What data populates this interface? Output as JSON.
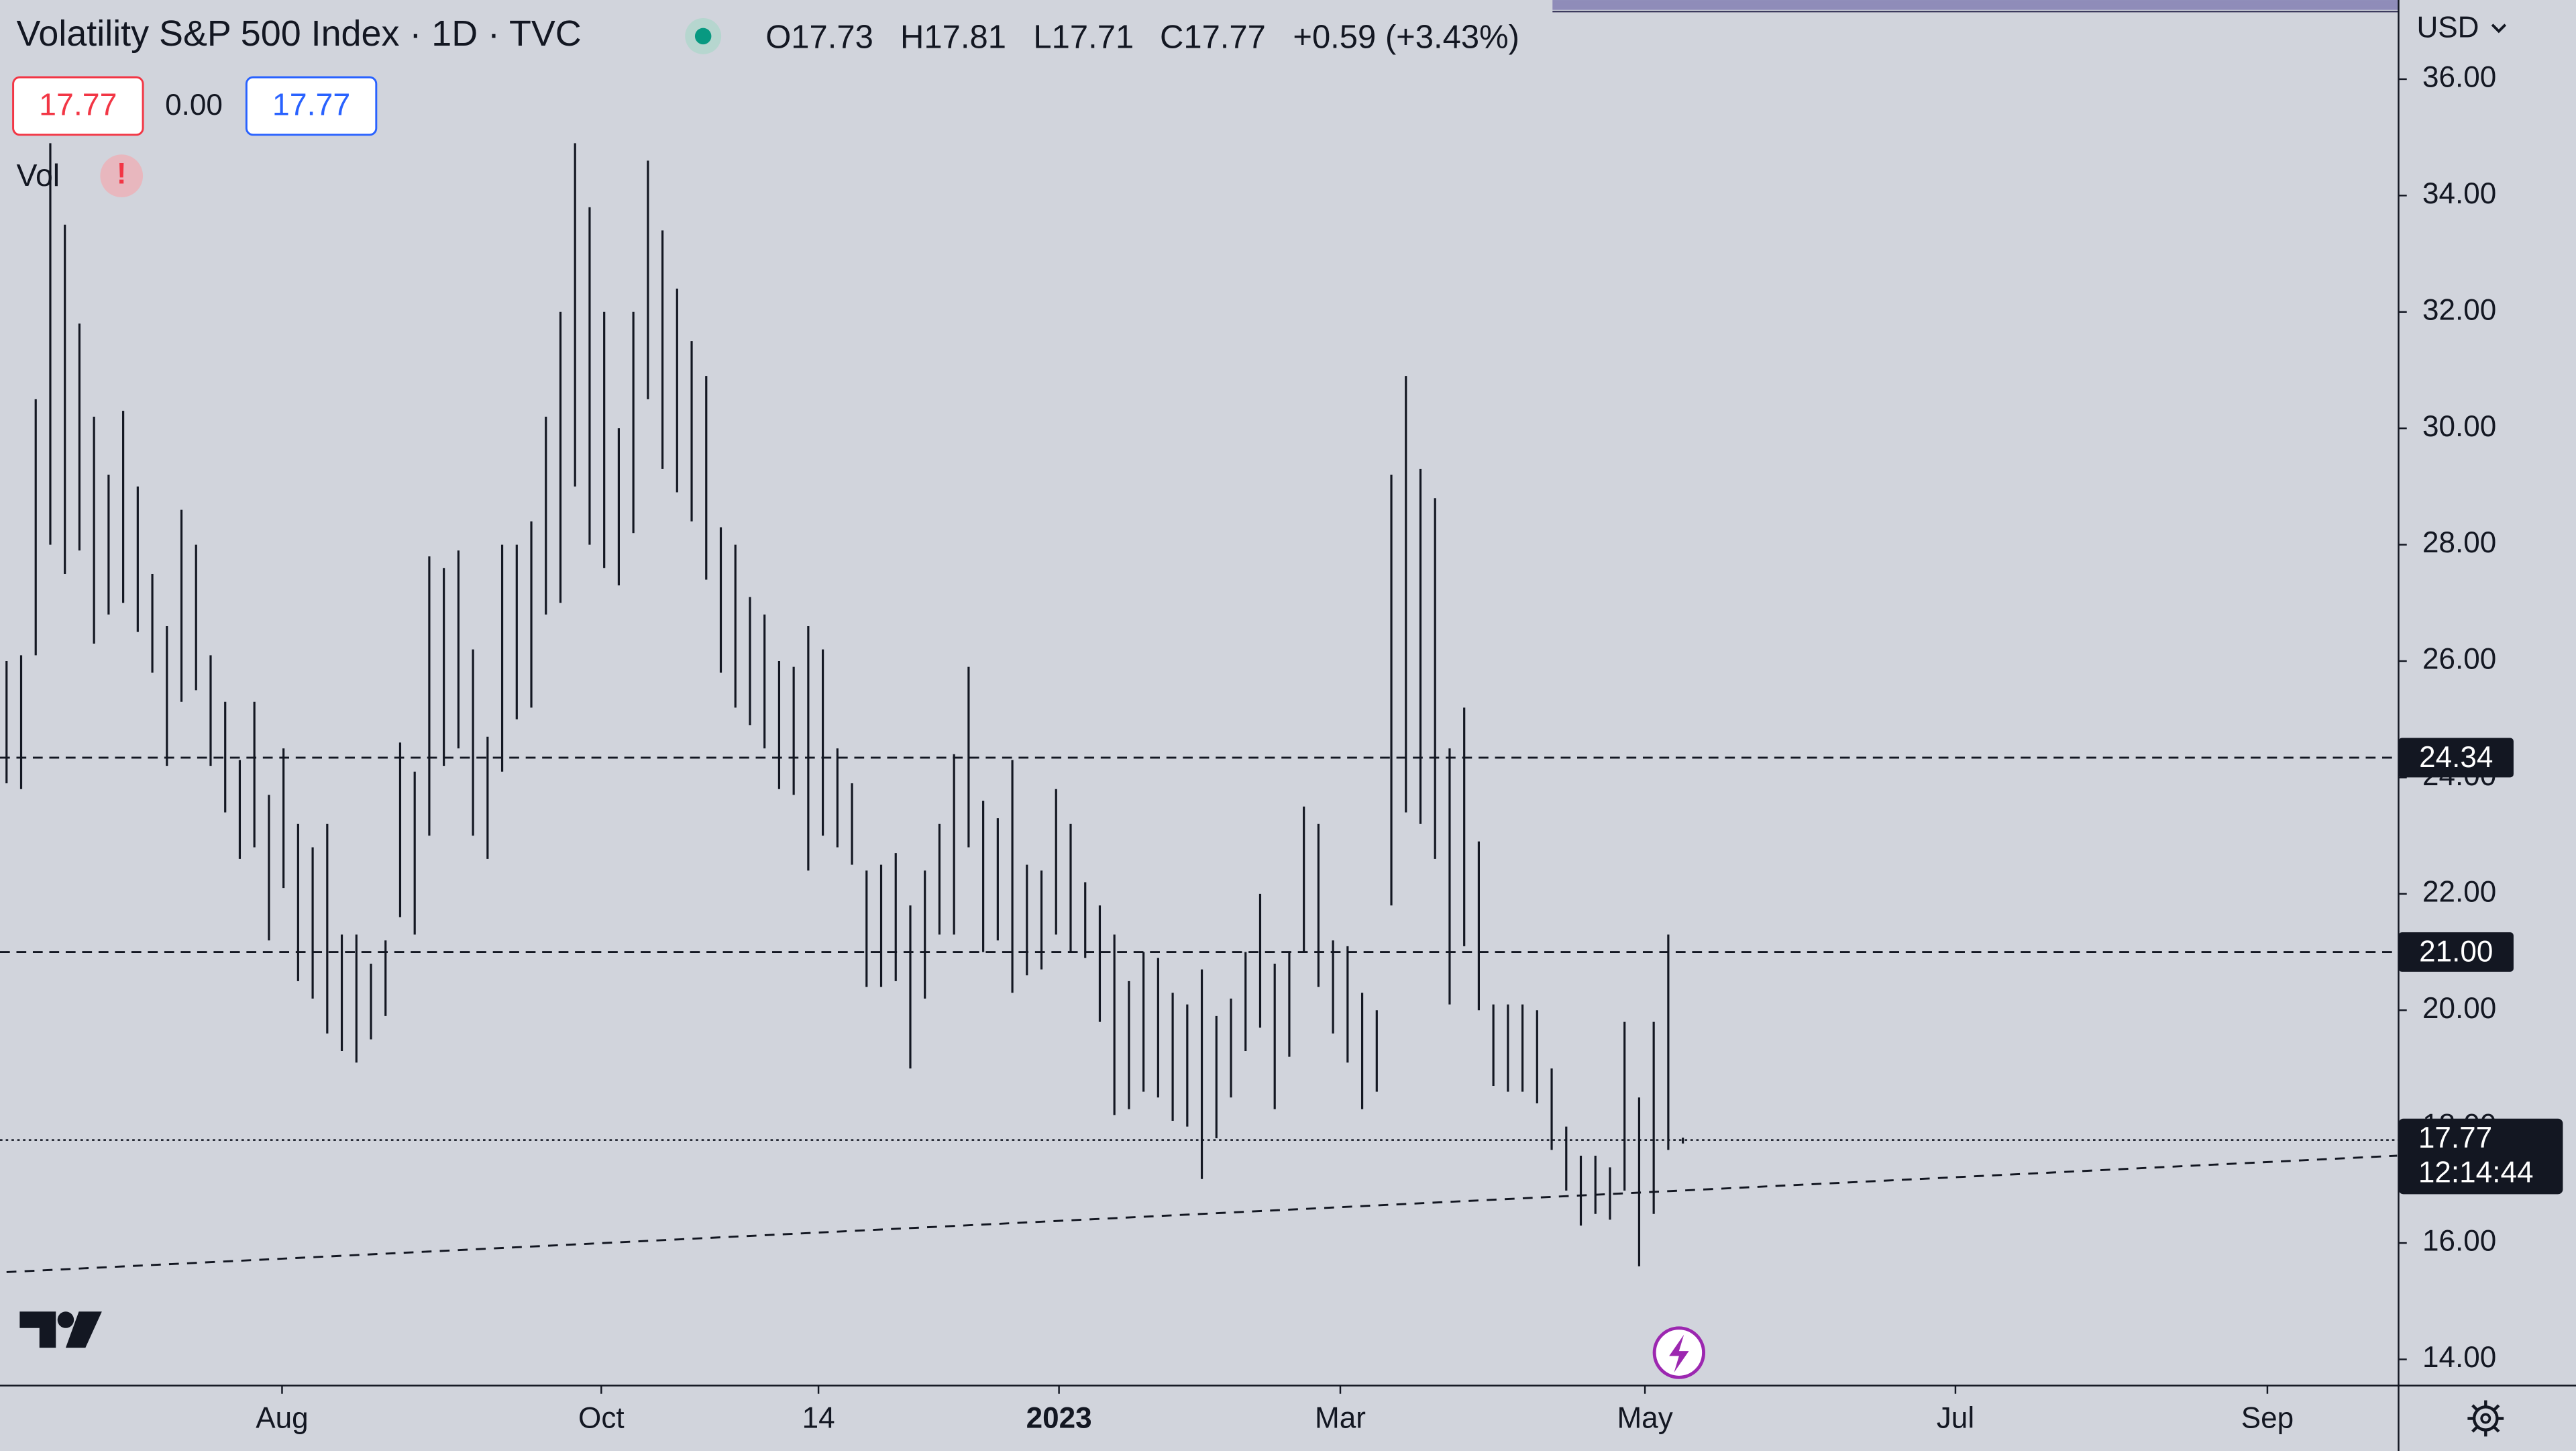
{
  "chart_data": {
    "type": "ohlc",
    "title": "Volatility S&P 500 Index · 1D · TVC",
    "ohlc_text": [
      "O17.73",
      "H17.81",
      "L17.71",
      "C17.77",
      "+0.59 (+3.43%)"
    ],
    "price_boxes": [
      "17.77",
      "0.00",
      "17.77"
    ],
    "indicator": "Vol",
    "warning": "!",
    "currency": "USD",
    "color": "#131722",
    "x": [
      0,
      1,
      2,
      3,
      4,
      5,
      6,
      7,
      8,
      9,
      10,
      11,
      12,
      13,
      14,
      15,
      16,
      17,
      18,
      19,
      20,
      21,
      22,
      23,
      24,
      25,
      26,
      27,
      28,
      29,
      30,
      31,
      32,
      33,
      34,
      35,
      36,
      37,
      38,
      39,
      40,
      41,
      42,
      43,
      44,
      45,
      46,
      47,
      48,
      49,
      50,
      51,
      52,
      53,
      54,
      55,
      56,
      57,
      58,
      59,
      60,
      61,
      62,
      63,
      64,
      65,
      66,
      67,
      68,
      69,
      70,
      71,
      72,
      73,
      74,
      75,
      76,
      77,
      78,
      79,
      80,
      81,
      82,
      83,
      84,
      85,
      86,
      87,
      88,
      89,
      90,
      91,
      92,
      93,
      94,
      95,
      96,
      97,
      98,
      99,
      100,
      101,
      102,
      103,
      104,
      105,
      106,
      107,
      108,
      109,
      110,
      111,
      112,
      113,
      114,
      115
    ],
    "high": [
      26.0,
      26.1,
      30.5,
      34.9,
      33.5,
      31.8,
      30.2,
      29.2,
      30.3,
      29.0,
      27.5,
      26.6,
      28.6,
      28.0,
      26.1,
      25.3,
      24.3,
      25.3,
      23.7,
      24.5,
      23.2,
      22.8,
      23.2,
      21.3,
      21.3,
      20.8,
      21.2,
      24.6,
      24.1,
      27.8,
      27.6,
      27.9,
      26.2,
      24.7,
      28.0,
      28.0,
      28.4,
      30.2,
      32.0,
      34.9,
      33.8,
      32.0,
      30.0,
      32.0,
      34.6,
      33.4,
      32.4,
      31.5,
      30.9,
      28.3,
      28.0,
      27.1,
      26.8,
      26.0,
      25.9,
      26.6,
      26.2,
      24.5,
      23.9,
      22.4,
      22.5,
      22.7,
      21.8,
      22.4,
      23.2,
      24.4,
      25.9,
      23.6,
      23.3,
      24.3,
      22.5,
      22.4,
      23.8,
      23.2,
      22.2,
      21.8,
      21.3,
      20.5,
      21.0,
      20.9,
      20.3,
      20.1,
      20.7,
      19.9,
      20.2,
      21.0,
      22.0,
      20.8,
      21.0,
      23.5,
      23.2,
      21.2,
      21.1,
      20.3,
      20.0,
      29.2,
      30.9,
      29.3,
      28.8,
      24.5,
      25.2,
      22.9,
      20.1,
      20.1,
      20.1,
      20.0,
      19.0,
      18.0,
      17.5,
      17.5,
      17.3,
      19.8,
      18.5,
      19.8,
      21.3,
      17.81
    ],
    "low": [
      23.9,
      23.8,
      26.1,
      28.0,
      27.5,
      27.9,
      26.3,
      26.8,
      27.0,
      26.5,
      25.8,
      24.2,
      25.3,
      25.5,
      24.2,
      23.4,
      22.6,
      22.8,
      21.2,
      22.1,
      20.5,
      20.2,
      19.6,
      19.3,
      19.1,
      19.5,
      19.9,
      21.6,
      21.3,
      23.0,
      24.2,
      24.5,
      23.0,
      22.6,
      24.1,
      25.0,
      25.2,
      26.8,
      27.0,
      29.0,
      28.0,
      27.6,
      27.3,
      28.2,
      30.5,
      29.3,
      28.9,
      28.4,
      27.4,
      25.8,
      25.2,
      24.9,
      24.5,
      23.8,
      23.7,
      22.4,
      23.0,
      22.8,
      22.5,
      20.4,
      20.4,
      20.5,
      19.0,
      20.2,
      21.3,
      21.3,
      22.8,
      21.0,
      21.2,
      20.3,
      20.6,
      20.7,
      21.3,
      21.0,
      20.9,
      19.8,
      18.2,
      18.3,
      18.6,
      18.5,
      18.1,
      18.0,
      17.1,
      17.8,
      18.5,
      19.3,
      19.7,
      18.3,
      19.2,
      21.0,
      20.4,
      19.6,
      19.1,
      18.3,
      18.6,
      21.8,
      23.4,
      23.2,
      22.6,
      20.1,
      21.1,
      20.0,
      18.7,
      18.6,
      18.6,
      18.4,
      17.6,
      16.9,
      16.3,
      16.5,
      16.4,
      16.9,
      15.6,
      16.5,
      17.6,
      17.71
    ],
    "xlim": [
      -0.45,
      164.1
    ],
    "ylim": [
      13.55,
      37.36
    ],
    "xticks": [
      {
        "value": 18.9,
        "label": "Aug"
      },
      {
        "value": 40.8,
        "label": "Oct"
      },
      {
        "value": 55.7,
        "label": "14"
      },
      {
        "value": 72.2,
        "label": "2023"
      },
      {
        "value": 91.5,
        "label": "Mar"
      },
      {
        "value": 112.4,
        "label": "May"
      },
      {
        "value": 133.7,
        "label": "Jul"
      },
      {
        "value": 155.1,
        "label": "Sep"
      }
    ],
    "yticks": [
      {
        "value": 14,
        "label": "14.00"
      },
      {
        "value": 16,
        "label": "16.00"
      },
      {
        "value": 18,
        "label": "18.00"
      },
      {
        "value": 20,
        "label": "20.00"
      },
      {
        "value": 22,
        "label": "22.00"
      },
      {
        "value": 24,
        "label": "24.00"
      },
      {
        "value": 26,
        "label": "26.00"
      },
      {
        "value": 28,
        "label": "28.00"
      },
      {
        "value": 30,
        "label": "30.00"
      },
      {
        "value": 32,
        "label": "32.00"
      },
      {
        "value": 34,
        "label": "34.00"
      },
      {
        "value": 36,
        "label": "36.00"
      }
    ],
    "levels": [
      24.34,
      {
        "value": 21,
        "label": "21.00"
      }
    ],
    "last_price": 17.77,
    "countdown": "12:14:44",
    "trendline": {
      "x": [
        0,
        164
      ],
      "y": [
        15.5,
        17.5
      ]
    }
  }
}
